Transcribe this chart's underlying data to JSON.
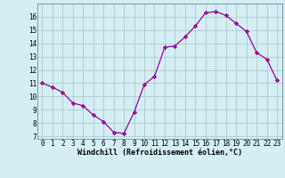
{
  "x": [
    0,
    1,
    2,
    3,
    4,
    5,
    6,
    7,
    8,
    9,
    10,
    11,
    12,
    13,
    14,
    15,
    16,
    17,
    18,
    19,
    20,
    21,
    22,
    23
  ],
  "y": [
    11.0,
    10.7,
    10.3,
    9.5,
    9.3,
    8.6,
    8.1,
    7.3,
    7.2,
    8.8,
    10.9,
    11.5,
    13.7,
    13.8,
    14.5,
    15.3,
    16.3,
    16.4,
    16.1,
    15.5,
    14.9,
    13.3,
    12.8,
    11.2
  ],
  "xlim": [
    -0.5,
    23.5
  ],
  "ylim": [
    6.8,
    17.0
  ],
  "yticks": [
    7,
    8,
    9,
    10,
    11,
    12,
    13,
    14,
    15,
    16
  ],
  "xticks": [
    0,
    1,
    2,
    3,
    4,
    5,
    6,
    7,
    8,
    9,
    10,
    11,
    12,
    13,
    14,
    15,
    16,
    17,
    18,
    19,
    20,
    21,
    22,
    23
  ],
  "xlabel": "Windchill (Refroidissement éolien,°C)",
  "line_color": "#990099",
  "marker_color": "#990099",
  "bg_color": "#d4eef4",
  "grid_color": "#aacccc",
  "tick_fontsize": 5.5,
  "label_fontsize": 6.0
}
